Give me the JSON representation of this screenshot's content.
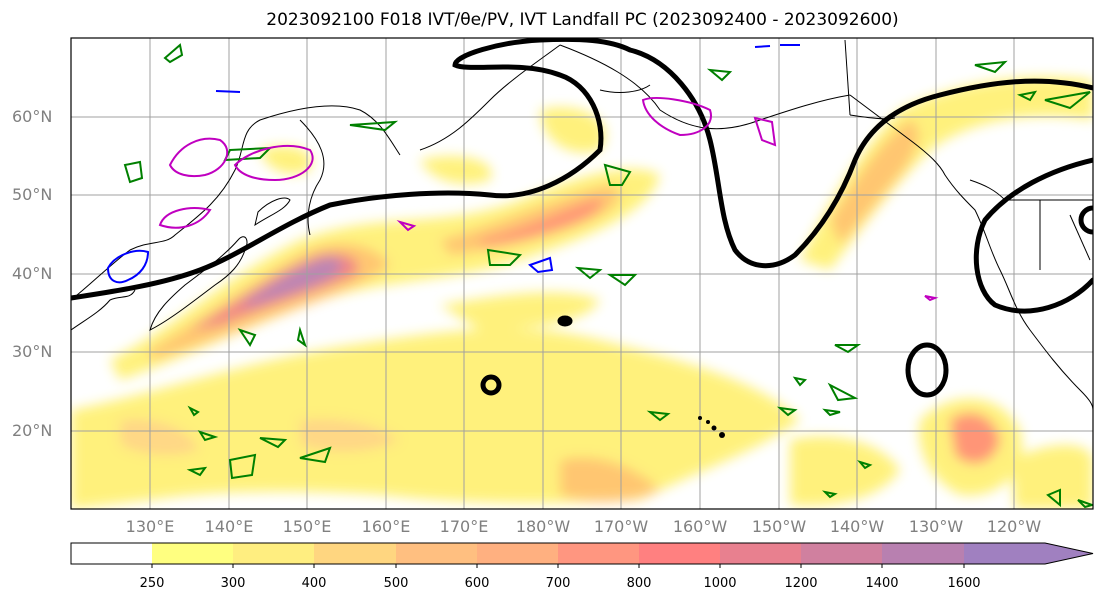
{
  "title": "2023092100 F018 IVT/θe/PV, IVT Landfall PC (2023092400 - 2023092600)",
  "map": {
    "lat_labels": [
      "60°N",
      "50°N",
      "40°N",
      "30°N",
      "20°N"
    ],
    "lon_labels": [
      "130°E",
      "140°E",
      "150°E",
      "160°E",
      "170°E",
      "180°W",
      "170°W",
      "160°W",
      "150°W",
      "140°W",
      "130°W",
      "120°W"
    ],
    "extent": {
      "lon_min": 120,
      "lon_max": 250,
      "lat_min": 10,
      "lat_max": 70
    },
    "fields": [
      "IVT shaded",
      "θe contour (black)",
      "PV contours (green, magenta, blue)"
    ]
  },
  "colorbar": {
    "labels": [
      "250",
      "300",
      "400",
      "500",
      "600",
      "700",
      "800",
      "1000",
      "1200",
      "1400",
      "1600"
    ],
    "colors": [
      "#ffffff",
      "#ffff80",
      "#ffee80",
      "#ffd680",
      "#ffbf80",
      "#ffb080",
      "#ff9680",
      "#ff8080",
      "#e8808f",
      "#d0809f",
      "#b880b0",
      "#a080c0"
    ],
    "extend": "max"
  }
}
